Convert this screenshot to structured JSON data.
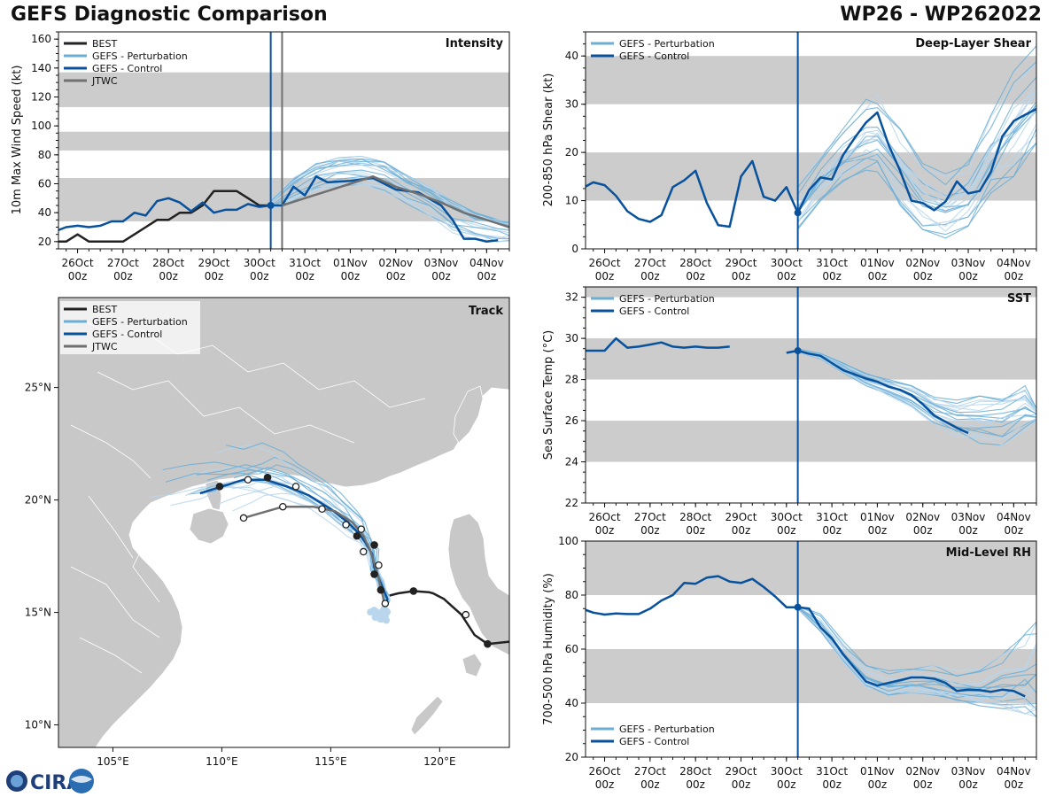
{
  "header": {
    "title": "GEFS Diagnostic Comparison",
    "storm_id": "WP26 - WP262022"
  },
  "logo": {
    "text": "CIRA"
  },
  "colors": {
    "best": "#222222",
    "perturbation": "#6baed6",
    "perturbation_light": "#b9d6ec",
    "control": "#08519c",
    "jtwc": "#707070",
    "band": "#cccccc",
    "land": "#c8c8c8",
    "init_line_control": "#08519c",
    "init_line_jtwc": "#707070"
  },
  "time_axis": {
    "tick_labels": [
      [
        "26Oct",
        "00z"
      ],
      [
        "27Oct",
        "00z"
      ],
      [
        "28Oct",
        "00z"
      ],
      [
        "29Oct",
        "00z"
      ],
      [
        "30Oct",
        "00z"
      ],
      [
        "31Oct",
        "00z"
      ],
      [
        "01Nov",
        "00z"
      ],
      [
        "02Nov",
        "00z"
      ],
      [
        "03Nov",
        "00z"
      ],
      [
        "04Nov",
        "00z"
      ]
    ],
    "range_days": [
      25.58,
      35.5
    ],
    "init_time_day": 30.25,
    "jtwc_time_day": 30.5
  },
  "chart_data": [
    {
      "id": "intensity",
      "type": "line",
      "title": "Intensity",
      "ylabel": "10m Max Wind Speed (kt)",
      "ylim": [
        15,
        165
      ],
      "yticks": [
        20,
        40,
        60,
        80,
        100,
        120,
        140,
        160
      ],
      "bands": [
        [
          34,
          64
        ],
        [
          83,
          96
        ],
        [
          113,
          137
        ]
      ],
      "legend": [
        "BEST",
        "GEFS - Perturbation",
        "GEFS - Control",
        "JTWC"
      ],
      "legend_position": "top-left",
      "series": [
        {
          "name": "BEST",
          "style": "best",
          "x": [
            25.5,
            25.75,
            26.0,
            26.25,
            26.5,
            26.75,
            27.0,
            27.25,
            27.5,
            27.75,
            28.0,
            28.25,
            28.5,
            28.75,
            29.0,
            29.25,
            29.5,
            29.75,
            30.0,
            30.25
          ],
          "values": [
            20,
            20,
            25,
            20,
            20,
            20,
            20,
            25,
            30,
            35,
            35,
            40,
            40,
            45,
            55,
            55,
            55,
            50,
            45,
            45
          ]
        },
        {
          "name": "GEFS - Control (analysis)",
          "style": "control",
          "x": [
            25.5,
            25.75,
            26.0,
            26.25,
            26.5,
            26.75,
            27.0,
            27.25,
            27.5,
            27.75,
            28.0,
            28.25,
            28.5,
            28.75,
            29.0,
            29.25,
            29.5,
            29.75,
            30.0,
            30.25
          ],
          "values": [
            27,
            30,
            31,
            30,
            31,
            34,
            34,
            40,
            38,
            48,
            50,
            47,
            41,
            47,
            40,
            42,
            42,
            46,
            44,
            45
          ]
        },
        {
          "name": "GEFS - Control",
          "style": "control",
          "x": [
            30.25,
            30.5,
            30.75,
            31.0,
            31.25,
            31.5,
            32.0,
            32.5,
            33.0,
            33.5,
            34.0,
            34.25,
            34.5,
            34.75,
            35.0,
            35.25
          ],
          "values": [
            45,
            45,
            58,
            52,
            65,
            61,
            62,
            64,
            56,
            54,
            45,
            35,
            22,
            22,
            20,
            21
          ]
        },
        {
          "name": "JTWC",
          "style": "jtwc",
          "x": [
            30.5,
            31.0,
            31.5,
            32.0,
            32.5,
            33.0,
            33.5,
            34.0,
            34.5,
            35.0,
            35.5
          ],
          "values": [
            45,
            50,
            55,
            60,
            65,
            58,
            53,
            47,
            40,
            35,
            30
          ]
        }
      ],
      "ensemble_spread": {
        "x": [
          30.25,
          30.75,
          31.25,
          31.75,
          32.25,
          32.75,
          33.25,
          33.75,
          34.25,
          34.75,
          35.25,
          35.5
        ],
        "lower": [
          42,
          48,
          55,
          58,
          58,
          54,
          46,
          38,
          26,
          22,
          20,
          20
        ],
        "upper": [
          48,
          64,
          74,
          78,
          79,
          75,
          66,
          58,
          48,
          40,
          36,
          34
        ],
        "members": 20
      },
      "init_marker_value": 45
    },
    {
      "id": "deep_layer_shear",
      "type": "line",
      "title": "Deep-Layer Shear",
      "ylabel": "200-850 hPa Shear (kt)",
      "ylim": [
        0,
        45
      ],
      "yticks": [
        0,
        10,
        20,
        30,
        40
      ],
      "bands": [
        [
          10,
          20
        ],
        [
          30,
          40
        ]
      ],
      "legend": [
        "GEFS - Perturbation",
        "GEFS - Control"
      ],
      "legend_position": "top-left",
      "series": [
        {
          "name": "GEFS - Control",
          "style": "control",
          "x": [
            25.5,
            25.75,
            26.0,
            26.25,
            26.5,
            26.75,
            27.0,
            27.25,
            27.5,
            27.75,
            28.0,
            28.25,
            28.5,
            28.75,
            29.0,
            29.25,
            29.5,
            29.75,
            30.0,
            30.25,
            30.5,
            30.75,
            31.0,
            31.25,
            31.5,
            31.75,
            32.0,
            32.25,
            32.5,
            32.75,
            33.0,
            33.25,
            33.5,
            33.75,
            34.0,
            34.25,
            34.5,
            34.75,
            35.0,
            35.25,
            35.5
          ],
          "values": [
            12.5,
            13.8,
            13.2,
            11,
            7.8,
            6.2,
            5.6,
            7,
            12.8,
            14.2,
            16.2,
            9.5,
            4.9,
            4.6,
            15,
            18.2,
            10.8,
            10,
            12.8,
            7.5,
            12.2,
            14.8,
            14.4,
            19.5,
            23,
            26.2,
            28.3,
            21.5,
            16.2,
            10,
            9.5,
            8,
            9.8,
            14,
            11.5,
            12,
            16,
            23.3,
            26.5,
            27.8,
            29
          ]
        }
      ],
      "ensemble_spread": {
        "x": [
          30.25,
          30.75,
          31.25,
          31.75,
          32.0,
          32.5,
          33.0,
          33.5,
          34.0,
          34.5,
          35.0,
          35.5
        ],
        "lower": [
          4,
          10,
          14,
          16,
          16,
          9,
          4,
          2,
          4,
          10,
          15,
          22
        ],
        "upper": [
          13,
          20,
          25,
          31,
          33,
          27,
          20,
          17,
          20,
          30,
          38,
          43
        ],
        "members": 20
      },
      "init_marker_value": 7.5
    },
    {
      "id": "sst",
      "type": "line",
      "title": "SST",
      "ylabel": "Sea Surface Temp (°C)",
      "ylim": [
        22,
        32.5
      ],
      "yticks": [
        22,
        24,
        26,
        28,
        30,
        32
      ],
      "bands": [
        [
          24,
          26
        ],
        [
          28,
          30
        ],
        [
          32,
          34
        ]
      ],
      "legend": [
        "GEFS - Perturbation",
        "GEFS - Control"
      ],
      "legend_position": "top-left",
      "series": [
        {
          "name": "GEFS - Control (analysis)",
          "style": "control",
          "x": [
            25.5,
            25.75,
            26.0,
            26.25,
            26.5,
            26.75,
            27.0,
            27.25,
            27.5,
            27.75,
            28.0,
            28.25,
            28.5,
            28.75
          ],
          "values": [
            29.4,
            29.4,
            29.4,
            30.0,
            29.55,
            29.6,
            29.7,
            29.8,
            29.6,
            29.55,
            29.6,
            29.55,
            29.55,
            29.6
          ]
        },
        {
          "name": "GEFS - Control",
          "style": "control",
          "x": [
            30.0,
            30.25,
            30.5,
            30.75,
            31.0,
            31.25,
            31.5,
            31.75,
            32.0,
            32.25,
            32.5,
            32.75,
            33.0,
            33.25,
            33.5,
            33.75,
            34.0
          ],
          "values": [
            29.3,
            29.4,
            29.25,
            29.15,
            28.8,
            28.45,
            28.25,
            28.05,
            27.9,
            27.65,
            27.5,
            27.25,
            26.8,
            26.25,
            25.95,
            25.65,
            25.4
          ]
        }
      ],
      "ensemble_spread": {
        "x": [
          30.25,
          30.75,
          31.25,
          31.75,
          32.25,
          32.75,
          33.25,
          33.75,
          34.25,
          34.75,
          35.25,
          35.5
        ],
        "lower": [
          29.3,
          29.0,
          28.3,
          27.7,
          27.2,
          26.6,
          25.8,
          25.2,
          24.9,
          24.8,
          25.5,
          26.0
        ],
        "upper": [
          29.5,
          29.3,
          28.8,
          28.3,
          28.0,
          27.7,
          27.2,
          27.0,
          27.2,
          27.3,
          27.7,
          26.6
        ],
        "members": 20
      },
      "init_marker_value": 29.4
    },
    {
      "id": "mid_level_rh",
      "type": "line",
      "title": "Mid-Level RH",
      "ylabel": "700-500 hPa Humidity (%)",
      "ylim": [
        20,
        100
      ],
      "yticks": [
        20,
        40,
        60,
        80,
        100
      ],
      "bands": [
        [
          40,
          60
        ],
        [
          80,
          100
        ]
      ],
      "legend": [
        "GEFS - Perturbation",
        "GEFS - Control"
      ],
      "legend_position": "bottom-left",
      "series": [
        {
          "name": "GEFS - Control",
          "style": "control",
          "x": [
            25.5,
            25.75,
            26.0,
            26.25,
            26.5,
            26.75,
            27.0,
            27.25,
            27.5,
            27.75,
            28.0,
            28.25,
            28.5,
            28.75,
            29.0,
            29.25,
            29.5,
            29.75,
            30.0,
            30.25,
            30.5,
            30.75,
            31.0,
            31.25,
            31.5,
            31.75,
            32.0,
            32.25,
            32.5,
            32.75,
            33.0,
            33.25,
            33.5,
            33.75,
            34.0,
            34.25,
            34.5,
            34.75,
            35.0,
            35.25
          ],
          "values": [
            75,
            73.5,
            72.8,
            73.2,
            73,
            73,
            75,
            78,
            80,
            84.5,
            84.2,
            86.5,
            87,
            85,
            84.5,
            86,
            83,
            79.5,
            75.5,
            75.5,
            75,
            68,
            64,
            58,
            53,
            48,
            46.5,
            47.5,
            48.5,
            49.5,
            49.5,
            49,
            47.5,
            44.5,
            45,
            44.8,
            44.2,
            45,
            44.5,
            42.5
          ]
        }
      ],
      "ensemble_spread": {
        "x": [
          30.25,
          30.75,
          31.25,
          31.75,
          32.25,
          32.75,
          33.25,
          33.75,
          34.25,
          34.75,
          35.25,
          35.5
        ],
        "lower": [
          75,
          66,
          55,
          46,
          43,
          44,
          43,
          41,
          39,
          38,
          36,
          35
        ],
        "upper": [
          76,
          73,
          63,
          54,
          52,
          53,
          54,
          52,
          53,
          58,
          66,
          72
        ],
        "members": 20
      },
      "init_marker_value": 75.5
    },
    {
      "id": "track",
      "type": "scatter",
      "title": "Track",
      "xlabel_ticks": [
        "105°E",
        "110°E",
        "115°E",
        "120°E"
      ],
      "ylabel_ticks": [
        "10°N",
        "15°N",
        "20°N",
        "25°N"
      ],
      "lon_range": [
        102.5,
        123.2
      ],
      "lat_range": [
        9.0,
        29.0
      ],
      "legend": [
        "BEST",
        "GEFS - Perturbation",
        "GEFS - Control",
        "JTWC"
      ],
      "legend_position": "top-left",
      "series": [
        {
          "name": "BEST",
          "style": "best",
          "lon": [
            123.2,
            122.2,
            121.6,
            121.0,
            120.2,
            119.7,
            119.5,
            118.8,
            118.1,
            117.7
          ],
          "lat": [
            13.7,
            13.6,
            14.0,
            14.9,
            15.6,
            15.85,
            15.9,
            15.95,
            15.85,
            15.75
          ],
          "filled_markers": [
            [
              122.2,
              13.6
            ],
            [
              118.8,
              15.95
            ]
          ],
          "open_markers": [
            [
              121.2,
              14.9
            ]
          ]
        },
        {
          "name": "GEFS - Control",
          "style": "control",
          "lon": [
            117.3,
            117.6,
            117.3,
            117.0,
            116.9,
            116.6,
            116.3,
            115.8,
            115.0,
            114.0,
            113.0,
            112.0,
            111.0,
            110.0,
            109.0
          ],
          "lat": [
            14.9,
            15.6,
            16.3,
            17.0,
            17.6,
            18.1,
            18.5,
            19.0,
            19.6,
            20.2,
            20.6,
            20.9,
            20.9,
            20.6,
            20.3
          ],
          "filled_markers": [
            [
              117.0,
              16.7
            ],
            [
              116.2,
              18.4
            ],
            [
              112.1,
              21.0
            ],
            [
              109.9,
              20.6
            ]
          ],
          "open_markers": [
            [
              116.5,
              17.7
            ],
            [
              115.7,
              18.9
            ],
            [
              113.4,
              20.6
            ],
            [
              111.2,
              20.9
            ]
          ]
        },
        {
          "name": "JTWC",
          "style": "jtwc",
          "lon": [
            117.5,
            117.4,
            117.2,
            117.0,
            116.8,
            116.5,
            116.0,
            115.2,
            114.2,
            112.8,
            111.0
          ],
          "lat": [
            15.1,
            15.7,
            16.5,
            17.2,
            17.8,
            18.4,
            19.0,
            19.5,
            19.7,
            19.7,
            19.2
          ],
          "filled_markers": [
            [
              117.3,
              16.0
            ],
            [
              117.0,
              18.0
            ]
          ],
          "open_markers": [
            [
              117.5,
              15.4
            ],
            [
              117.2,
              17.1
            ],
            [
              116.4,
              18.7
            ],
            [
              114.6,
              19.6
            ],
            [
              112.8,
              19.7
            ],
            [
              111.0,
              19.2
            ]
          ]
        }
      ]
    }
  ]
}
